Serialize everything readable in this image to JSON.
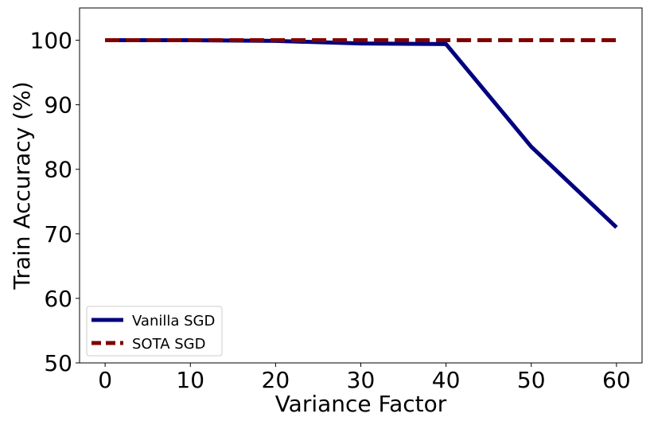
{
  "chart_data": {
    "type": "line",
    "title": "",
    "xlabel": "Variance Factor",
    "ylabel": "Train Accuracy (%)",
    "xlim": [
      -3,
      63
    ],
    "ylim": [
      50,
      105
    ],
    "xticks": [
      0,
      10,
      20,
      30,
      40,
      50,
      60
    ],
    "yticks": [
      50,
      60,
      70,
      80,
      90,
      100
    ],
    "grid": false,
    "legend": "lower-left",
    "series": [
      {
        "name": "Vanilla SGD",
        "color": "#00007f",
        "style": "solid",
        "x": [
          0,
          10,
          20,
          30,
          40,
          50,
          60
        ],
        "y": [
          100.0,
          100.0,
          99.9,
          99.5,
          99.4,
          83.5,
          71.0
        ]
      },
      {
        "name": "SOTA SGD",
        "color": "#7f0000",
        "style": "dashed",
        "x": [
          0,
          10,
          20,
          30,
          40,
          50,
          60
        ],
        "y": [
          100.0,
          100.0,
          100.0,
          100.0,
          100.0,
          100.0,
          100.0
        ]
      }
    ]
  }
}
